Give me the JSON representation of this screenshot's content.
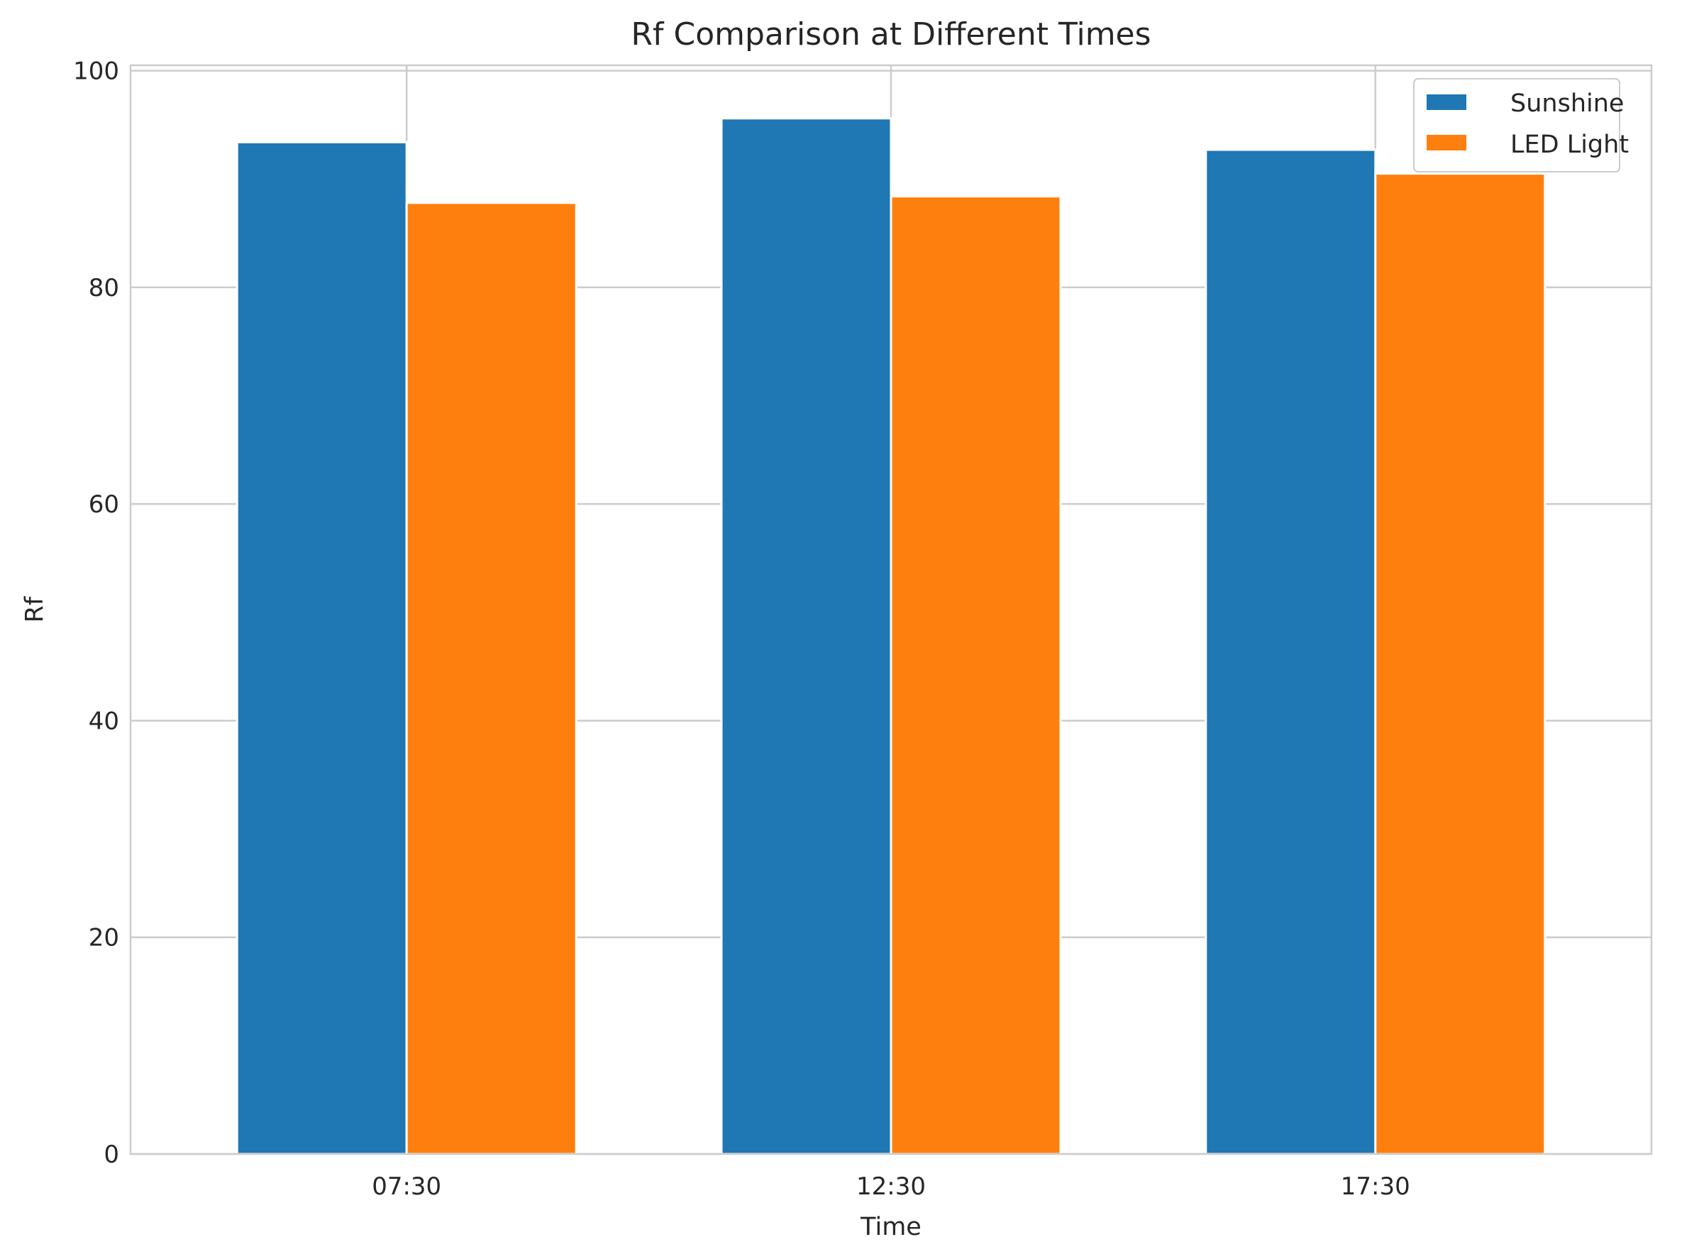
{
  "chart_data": {
    "type": "bar",
    "title": "Rf Comparison at Different Times",
    "xlabel": "Time",
    "ylabel": "Rf",
    "categories": [
      "07:30",
      "12:30",
      "17:30"
    ],
    "series": [
      {
        "name": "Sunshine",
        "values": [
          93.4,
          95.6,
          92.7
        ],
        "color": "#1f77b4"
      },
      {
        "name": "LED Light",
        "values": [
          87.8,
          88.4,
          90.5
        ],
        "color": "#ff7f0e"
      }
    ],
    "ylim": [
      0,
      100.5
    ],
    "yticks": [
      "0",
      "20",
      "40",
      "60",
      "80",
      "100"
    ],
    "grid": true,
    "legend_position": "top-right"
  }
}
